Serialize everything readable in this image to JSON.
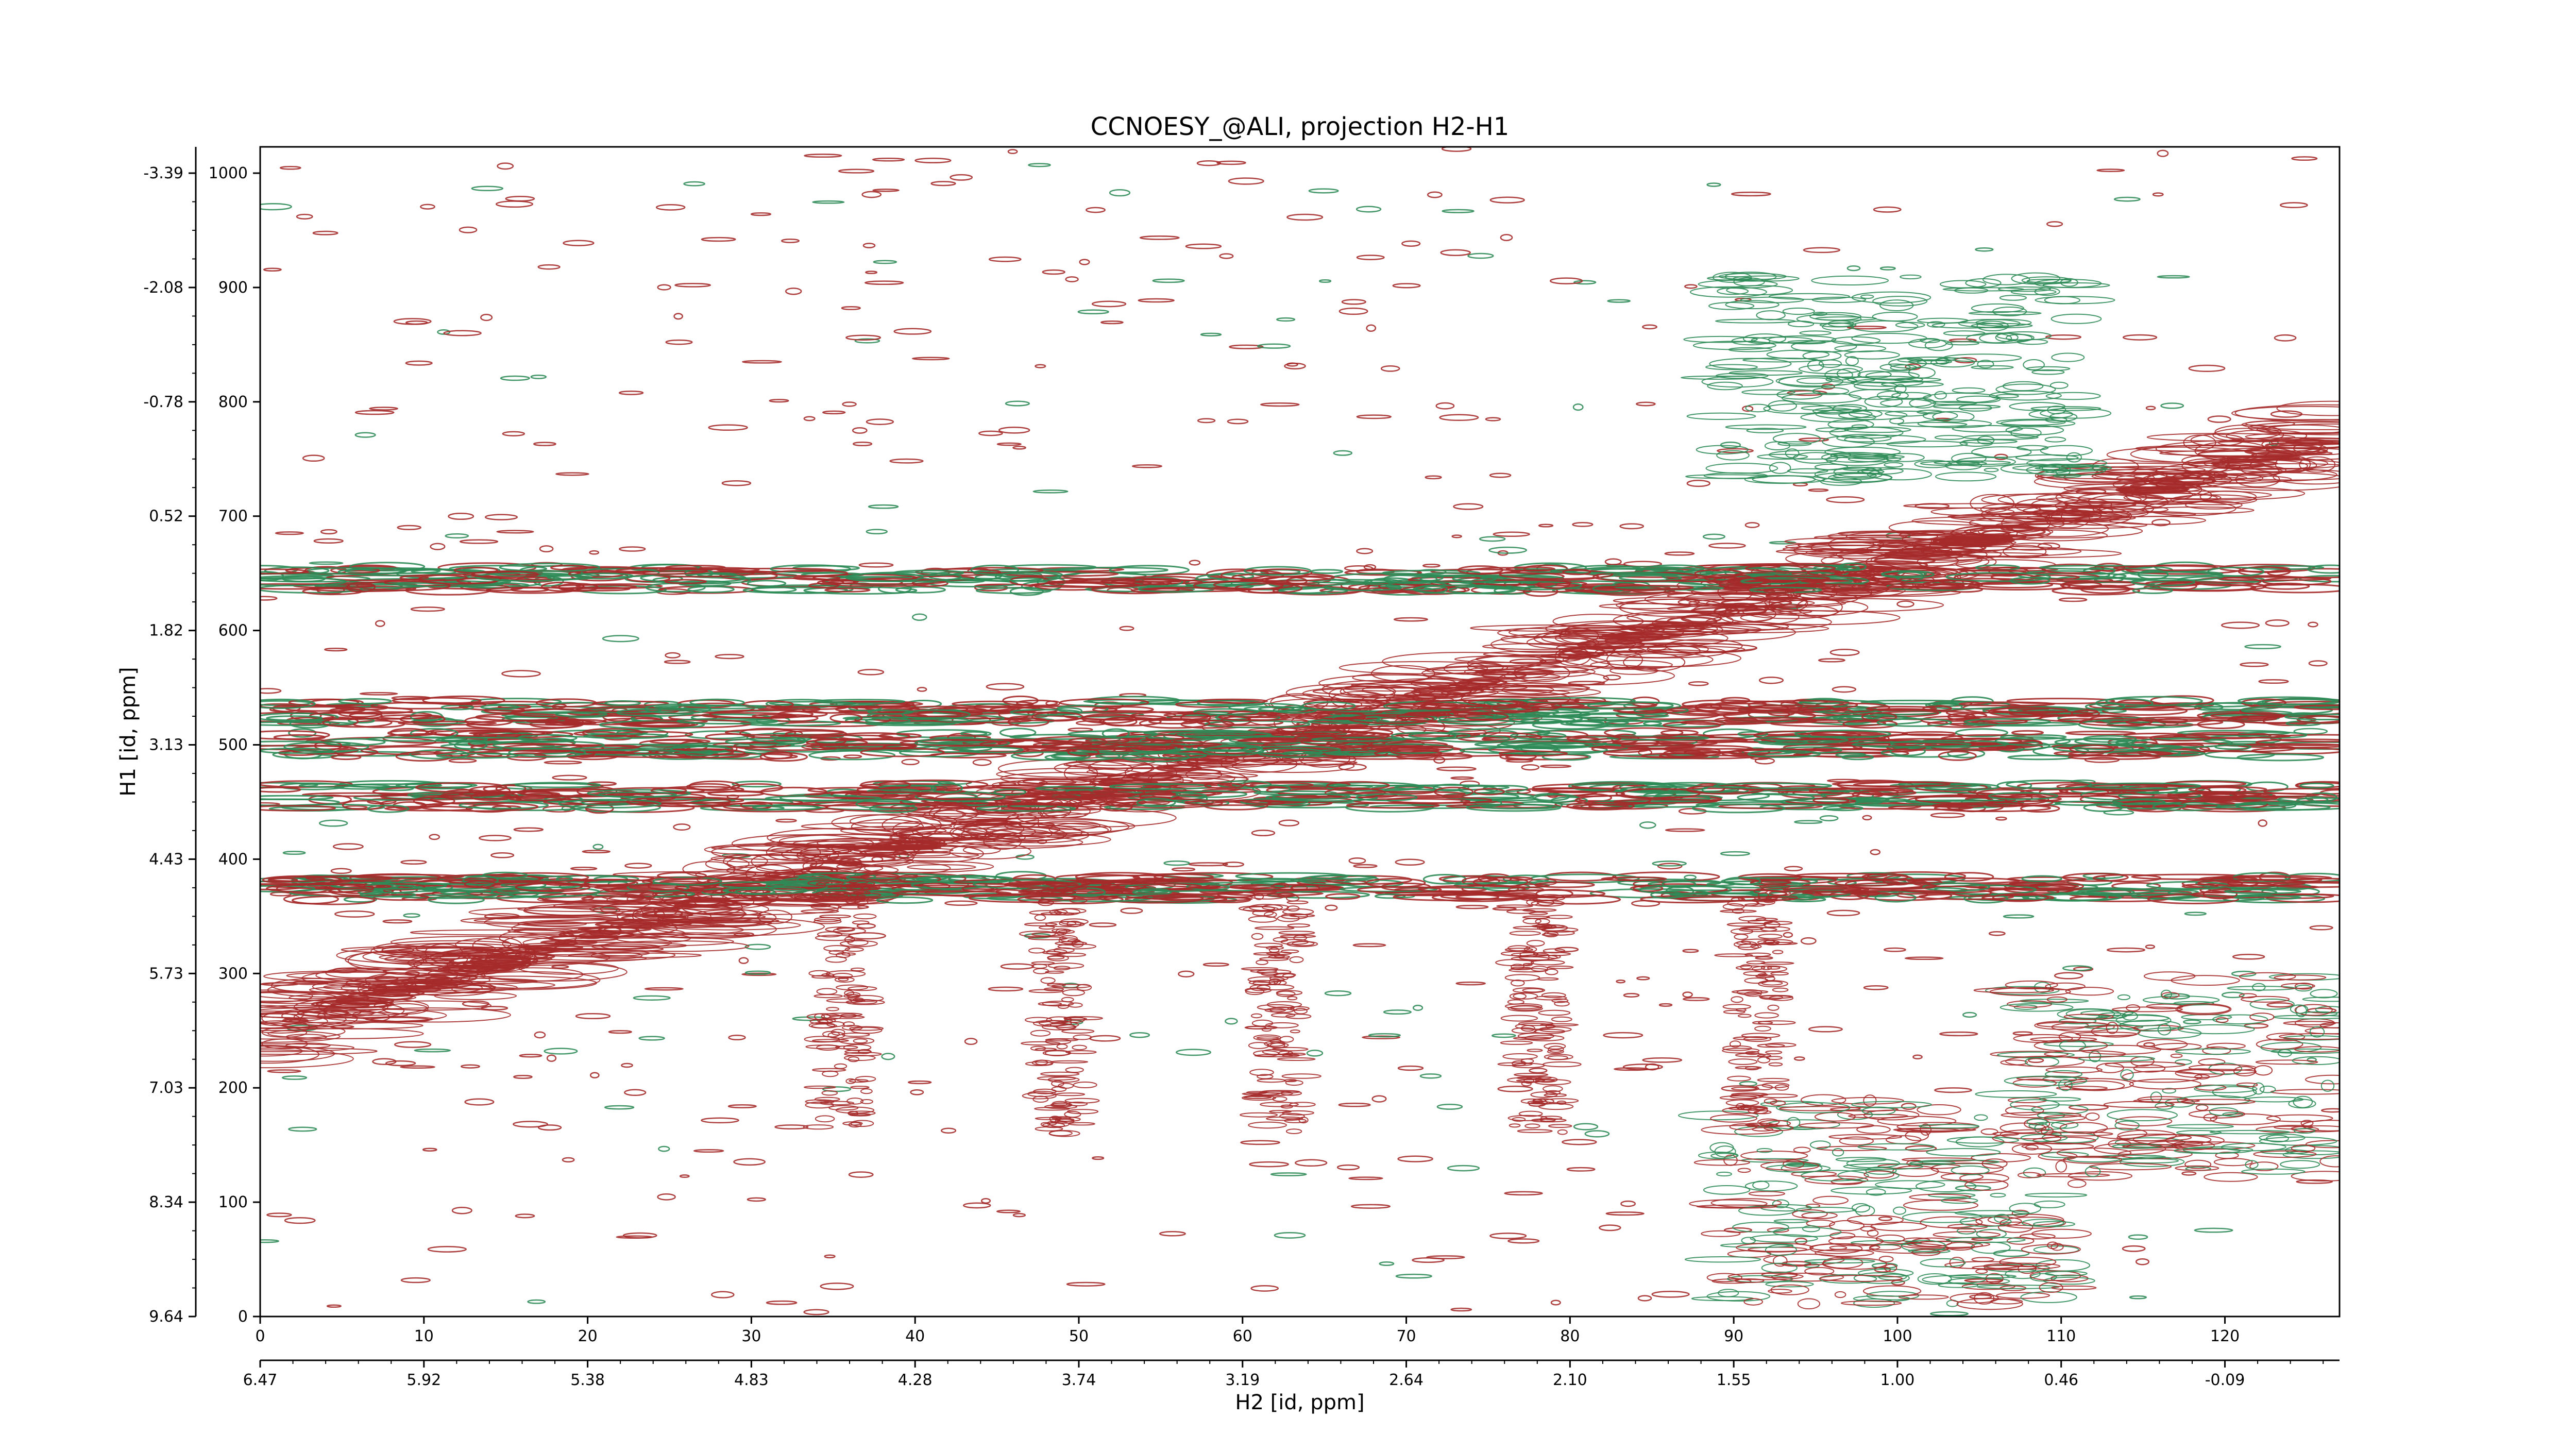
{
  "chart_data": {
    "type": "contour",
    "title": "CCNOESY_@ALI, projection H2-H1",
    "xlabel": "H2 [id, ppm]",
    "ylabel": "H1 [id, ppm]",
    "x_index_range": [
      0,
      127
    ],
    "y_index_range": [
      0,
      1023
    ],
    "x_index_ticks": [
      "0",
      "10",
      "20",
      "30",
      "40",
      "50",
      "60",
      "70",
      "80",
      "90",
      "100",
      "110",
      "120"
    ],
    "x_ppm_ticks": [
      "6.47",
      "5.92",
      "5.38",
      "4.83",
      "4.28",
      "3.74",
      "3.19",
      "2.64",
      "2.10",
      "1.55",
      "1.00",
      "0.46",
      "-0.09"
    ],
    "y_index_ticks": [
      "0",
      "100",
      "200",
      "300",
      "400",
      "500",
      "600",
      "700",
      "800",
      "900",
      "1000"
    ],
    "y_ppm_ticks": [
      "9.64",
      "8.34",
      "7.03",
      "5.73",
      "4.43",
      "3.13",
      "1.82",
      "0.52",
      "-0.78",
      "-2.08",
      "-3.39"
    ],
    "series": [
      {
        "color": "#a52a2a",
        "sign": "positive"
      },
      {
        "color": "#2e8b57",
        "sign": "negative"
      }
    ],
    "features": [
      {
        "kind": "diagonal",
        "from": [
          0,
          250
        ],
        "to": [
          127,
          770
        ],
        "sign": "positive"
      },
      {
        "kind": "horizontal_band",
        "y": 375,
        "sign": "mixed"
      },
      {
        "kind": "horizontal_band",
        "y": 455,
        "sign": "mixed"
      },
      {
        "kind": "horizontal_band",
        "y": 500,
        "sign": "mixed"
      },
      {
        "kind": "horizontal_band",
        "y": 528,
        "sign": "mixed"
      },
      {
        "kind": "horizontal_band",
        "y": 645,
        "sign": "mixed"
      },
      {
        "kind": "peak_cluster",
        "x": 100,
        "y": 820,
        "sign": "negative"
      },
      {
        "kind": "peak_cluster",
        "x": 100,
        "y": 100,
        "sign": "mixed"
      },
      {
        "kind": "peak_cluster",
        "x": 118,
        "y": 210,
        "sign": "mixed"
      }
    ],
    "grid": false,
    "legend": "none"
  }
}
